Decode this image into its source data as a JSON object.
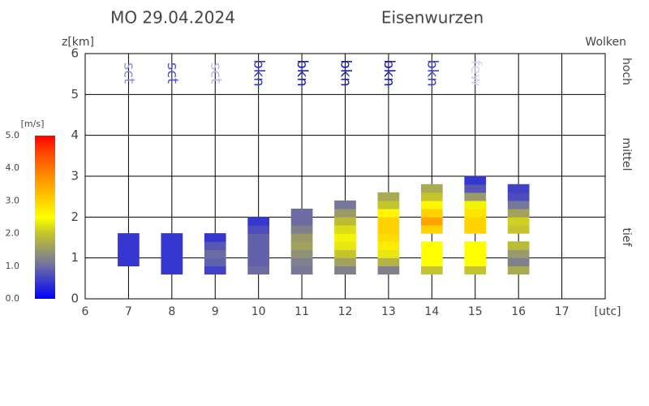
{
  "chart_data": {
    "type": "thermal-columns",
    "title": "MO 29.04.2024",
    "location": "Eisenwurzen",
    "ylabel": "z[km]",
    "clouds_label": "Wolken",
    "levels": [
      "hoch",
      "mittel",
      "tief"
    ],
    "xlim": [
      6,
      18
    ],
    "xticks": [
      6,
      7,
      8,
      9,
      10,
      11,
      12,
      13,
      14,
      15,
      16,
      17,
      {
        "value": 18,
        "label": "[utc]"
      }
    ],
    "ylim": [
      0,
      6
    ],
    "yticks": [
      0,
      1,
      2,
      3,
      4,
      5,
      6
    ],
    "grid": true,
    "colorbar_title": "[m/s]",
    "clim": [
      0,
      5
    ],
    "cticks": [
      {
        "value": 0,
        "label": "0.0"
      },
      {
        "value": 1,
        "label": "1.0"
      },
      {
        "value": 2,
        "label": "2.0"
      },
      {
        "value": 3,
        "label": "3.0"
      },
      {
        "value": 4,
        "label": "4.0"
      },
      {
        "value": 5,
        "label": "5.0"
      }
    ],
    "colorscale": [
      {
        "value": 0,
        "color": "#0000ff"
      },
      {
        "value": 1.1,
        "color": "#777799"
      },
      {
        "value": 2,
        "color": "#c4c42c"
      },
      {
        "value": 2.5,
        "color": "#ffff00"
      },
      {
        "value": 3.5,
        "color": "#ffa500"
      },
      {
        "value": 4.5,
        "color": "#ff4400"
      },
      {
        "value": 5,
        "color": "#ff0000"
      }
    ],
    "clouds": [
      {
        "x": 7,
        "label": "sct",
        "color": "#8f8fdf"
      },
      {
        "x": 8,
        "label": "sct",
        "color": "#5353cf"
      },
      {
        "x": 9,
        "label": "sct",
        "color": "#b8b8ea"
      },
      {
        "x": 10,
        "label": "bkn",
        "color": "#3535d2"
      },
      {
        "x": 11,
        "label": "bkn",
        "color": "#1a1acc"
      },
      {
        "x": 12,
        "label": "bkn",
        "color": "#1a1acc"
      },
      {
        "x": 13,
        "label": "bkn",
        "color": "#1a1acc"
      },
      {
        "x": 14,
        "label": "bkn",
        "color": "#4040d6"
      },
      {
        "x": 15,
        "label": "few",
        "color": "#d4d4f2"
      }
    ],
    "blocks": [
      {
        "x": 7,
        "bottom": 0.8,
        "top": 1.6,
        "w": [
          0.5,
          0.5,
          0.5,
          0.5
        ]
      },
      {
        "x": 8,
        "bottom": 0.6,
        "top": 1.6,
        "w": [
          0.5,
          0.5,
          0.5,
          0.5,
          0.5
        ]
      },
      {
        "x": 9,
        "bottom": 0.6,
        "top": 1.6,
        "w": [
          0.6,
          0.9,
          1.0,
          0.8,
          0.5
        ]
      },
      {
        "x": 10,
        "bottom": 0.6,
        "top": 2.0,
        "w": [
          1.0,
          0.9,
          0.9,
          0.9,
          0.9,
          0.7,
          0.5
        ]
      },
      {
        "x": 11,
        "bottom": 0.6,
        "top": 2.2,
        "w": [
          1.1,
          1.2,
          1.4,
          1.6,
          1.5,
          1.2,
          1.0,
          1.0
        ]
      },
      {
        "x": 12,
        "bottom": 0.6,
        "top": 2.4,
        "w": [
          1.2,
          1.6,
          2.0,
          2.3,
          2.4,
          2.2,
          1.9,
          1.5,
          1.1
        ]
      },
      {
        "x": 13,
        "bottom": 0.6,
        "top": 2.6,
        "w": [
          1.2,
          1.8,
          2.3,
          2.7,
          2.9,
          3.0,
          3.0,
          2.6,
          2.0,
          1.7
        ]
      },
      {
        "x": 14,
        "bottom": 0.6,
        "top": 1.4,
        "w": [
          2.0,
          2.5,
          2.5,
          2.5
        ]
      },
      {
        "x": 14,
        "bottom": 1.6,
        "top": 2.8,
        "w": [
          3.0,
          3.5,
          3.0,
          2.6,
          2.0,
          1.7
        ]
      },
      {
        "x": 15,
        "bottom": 0.6,
        "top": 1.4,
        "w": [
          2.0,
          2.5,
          2.5,
          2.5
        ]
      },
      {
        "x": 15,
        "bottom": 1.6,
        "top": 3.0,
        "w": [
          3.0,
          3.0,
          2.8,
          2.4,
          1.5,
          0.8,
          0.5
        ]
      },
      {
        "x": 16,
        "bottom": 0.6,
        "top": 1.4,
        "w": [
          1.7,
          1.2,
          1.5,
          1.9
        ]
      },
      {
        "x": 16,
        "bottom": 1.6,
        "top": 2.8,
        "w": [
          2.0,
          2.1,
          1.6,
          1.1,
          0.7,
          0.6
        ]
      }
    ]
  }
}
